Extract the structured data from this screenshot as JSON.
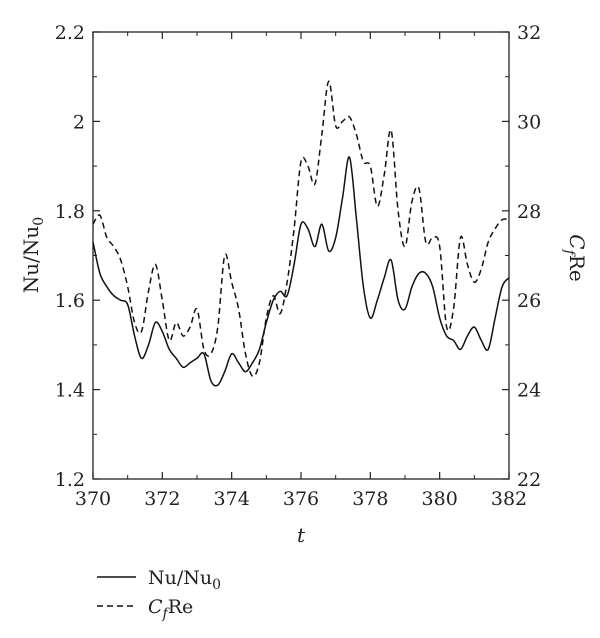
{
  "chart_data": {
    "type": "line",
    "title": "",
    "xlabel": "t",
    "ylabel_left": "Nu/Nu0",
    "ylabel_right": "CfRe",
    "xlim": [
      370,
      382
    ],
    "ylim_left": [
      1.2,
      2.2
    ],
    "ylim_right": [
      22,
      32
    ],
    "x_ticks": [
      "370",
      "372",
      "374",
      "376",
      "378",
      "380",
      "382"
    ],
    "y_ticks_left": [
      "1.2",
      "1.4",
      "1.6",
      "1.8",
      "2",
      "2.2"
    ],
    "y_ticks_right": [
      "22",
      "24",
      "26",
      "28",
      "30",
      "32"
    ],
    "grid": false,
    "legend_position": "bottom-left",
    "series": [
      {
        "name": "Nu/Nu0",
        "axis": "left",
        "style": "solid",
        "x": [
          370.0,
          370.2,
          370.4,
          370.6,
          370.8,
          371.0,
          371.2,
          371.4,
          371.6,
          371.8,
          372.0,
          372.2,
          372.4,
          372.6,
          372.8,
          373.0,
          373.2,
          373.4,
          373.6,
          373.8,
          374.0,
          374.2,
          374.4,
          374.6,
          374.8,
          375.0,
          375.2,
          375.4,
          375.6,
          375.8,
          376.0,
          376.2,
          376.4,
          376.6,
          376.8,
          377.0,
          377.2,
          377.4,
          377.6,
          377.8,
          378.0,
          378.2,
          378.4,
          378.6,
          378.8,
          379.0,
          379.2,
          379.4,
          379.6,
          379.8,
          380.0,
          380.2,
          380.4,
          380.6,
          380.8,
          381.0,
          381.2,
          381.4,
          381.6,
          381.8,
          382.0
        ],
        "y": [
          1.73,
          1.66,
          1.63,
          1.61,
          1.6,
          1.59,
          1.52,
          1.47,
          1.5,
          1.55,
          1.53,
          1.49,
          1.47,
          1.45,
          1.46,
          1.47,
          1.48,
          1.42,
          1.41,
          1.44,
          1.48,
          1.46,
          1.44,
          1.46,
          1.49,
          1.55,
          1.6,
          1.62,
          1.61,
          1.68,
          1.77,
          1.76,
          1.72,
          1.77,
          1.71,
          1.74,
          1.83,
          1.92,
          1.78,
          1.63,
          1.56,
          1.6,
          1.65,
          1.69,
          1.6,
          1.58,
          1.63,
          1.66,
          1.66,
          1.63,
          1.56,
          1.52,
          1.51,
          1.49,
          1.52,
          1.54,
          1.51,
          1.49,
          1.56,
          1.63,
          1.65
        ]
      },
      {
        "name": "CfRe",
        "axis": "right",
        "style": "dashed",
        "x": [
          370.0,
          370.2,
          370.4,
          370.6,
          370.8,
          371.0,
          371.2,
          371.4,
          371.6,
          371.8,
          372.0,
          372.2,
          372.4,
          372.6,
          372.8,
          373.0,
          373.2,
          373.4,
          373.6,
          373.8,
          374.0,
          374.2,
          374.4,
          374.6,
          374.8,
          375.0,
          375.2,
          375.4,
          375.6,
          375.8,
          376.0,
          376.2,
          376.4,
          376.6,
          376.8,
          377.0,
          377.2,
          377.4,
          377.6,
          377.8,
          378.0,
          378.2,
          378.4,
          378.6,
          378.8,
          379.0,
          379.2,
          379.4,
          379.6,
          379.8,
          380.0,
          380.2,
          380.4,
          380.6,
          380.8,
          381.0,
          381.2,
          381.4,
          381.6,
          381.8,
          382.0
        ],
        "y": [
          27.7,
          27.9,
          27.4,
          27.2,
          26.9,
          26.3,
          25.5,
          25.3,
          26.2,
          26.8,
          26.0,
          25.1,
          25.5,
          25.2,
          25.4,
          25.8,
          24.9,
          24.8,
          25.4,
          27.0,
          26.4,
          25.8,
          24.8,
          24.3,
          24.6,
          25.6,
          26.1,
          25.7,
          26.4,
          27.6,
          29.1,
          29.0,
          28.6,
          29.7,
          30.9,
          29.9,
          30.0,
          30.1,
          29.7,
          29.1,
          29.0,
          28.1,
          28.8,
          29.8,
          28.0,
          27.2,
          28.2,
          28.5,
          27.3,
          27.4,
          27.2,
          25.4,
          25.8,
          27.4,
          26.8,
          26.4,
          26.7,
          27.3,
          27.6,
          27.8,
          27.8
        ]
      }
    ]
  }
}
